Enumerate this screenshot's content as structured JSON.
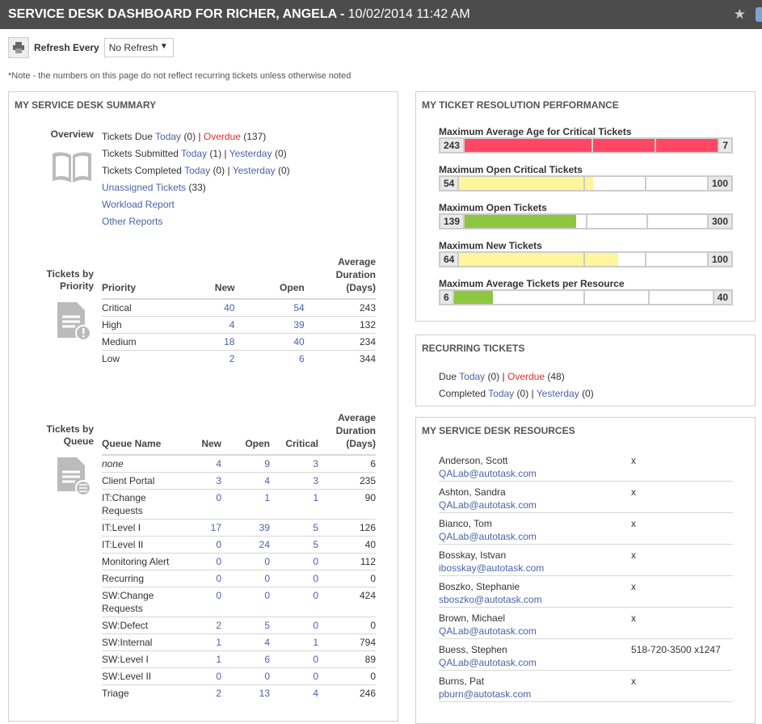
{
  "header": {
    "title": "SERVICE DESK DASHBOARD FOR RICHER, ANGELA",
    "separator": " - ",
    "datetime": "10/02/2014 11:42 AM"
  },
  "toolbar": {
    "refresh_label": "Refresh Every",
    "refresh_value": "No Refresh"
  },
  "note": "*Note - the numbers on this page do not reflect recurring tickets unless otherwise noted",
  "summary": {
    "title": "MY SERVICE DESK SUMMARY",
    "overview_label": "Overview",
    "due": {
      "label": "Tickets Due",
      "today": "Today",
      "today_count": "(0)",
      "sep": " | ",
      "overdue": "Overdue",
      "overdue_count": "(137)"
    },
    "submitted": {
      "label": "Tickets Submitted",
      "today": "Today",
      "today_count": "(1)",
      "sep": " | ",
      "yesterday": "Yesterday",
      "yesterday_count": "(0)"
    },
    "completed": {
      "label": "Tickets Completed",
      "today": "Today",
      "today_count": "(0)",
      "sep": " | ",
      "yesterday": "Yesterday",
      "yesterday_count": "(0)"
    },
    "unassigned": "Unassigned Tickets",
    "unassigned_count": "(33)",
    "workload": "Workload Report",
    "other": "Other Reports",
    "priority_label": "Tickets by Priority",
    "priority_headers": [
      "Priority",
      "New",
      "Open",
      "Average Duration (Days)"
    ],
    "priority_rows": [
      [
        "Critical",
        "40",
        "54",
        "243"
      ],
      [
        "High",
        "4",
        "39",
        "132"
      ],
      [
        "Medium",
        "18",
        "40",
        "234"
      ],
      [
        "Low",
        "2",
        "6",
        "344"
      ]
    ],
    "queue_label": "Tickets by Queue",
    "queue_headers": [
      "Queue Name",
      "New",
      "Open",
      "Critical",
      "Average Duration (Days)"
    ],
    "queue_rows": [
      [
        "none",
        "4",
        "9",
        "3",
        "6"
      ],
      [
        "Client Portal",
        "3",
        "4",
        "3",
        "235"
      ],
      [
        "IT:Change Requests",
        "0",
        "1",
        "1",
        "90"
      ],
      [
        "IT:Level I",
        "17",
        "39",
        "5",
        "126"
      ],
      [
        "IT:Level II",
        "0",
        "24",
        "5",
        "40"
      ],
      [
        "Monitoring Alert",
        "0",
        "0",
        "0",
        "112"
      ],
      [
        "Recurring",
        "0",
        "0",
        "0",
        "0"
      ],
      [
        "SW:Change Requests",
        "0",
        "0",
        "0",
        "424"
      ],
      [
        "SW:Defect",
        "2",
        "5",
        "0",
        "0"
      ],
      [
        "SW:Internal",
        "1",
        "4",
        "1",
        "794"
      ],
      [
        "SW:Level I",
        "1",
        "6",
        "0",
        "89"
      ],
      [
        "SW:Level II",
        "0",
        "0",
        "0",
        "0"
      ],
      [
        "Triage",
        "2",
        "13",
        "4",
        "246"
      ]
    ]
  },
  "performance": {
    "title": "MY TICKET RESOLUTION PERFORMANCE",
    "bars": [
      {
        "title": "Maximum Average Age for Critical Tickets",
        "value": "243",
        "max": "7",
        "percent": 100,
        "color": "#ff4763"
      },
      {
        "title": "Maximum Open Critical Tickets",
        "value": "54",
        "max": "100",
        "percent": 54,
        "color": "#fff59d"
      },
      {
        "title": "Maximum Open Tickets",
        "value": "139",
        "max": "300",
        "percent": 46,
        "color": "#8dc63f"
      },
      {
        "title": "Maximum New Tickets",
        "value": "64",
        "max": "100",
        "percent": 64,
        "color": "#fff59d"
      },
      {
        "title": "Maximum Average Tickets per Resource",
        "value": "6",
        "max": "40",
        "percent": 15,
        "color": "#8dc63f"
      }
    ]
  },
  "recurring": {
    "title": "RECURRING TICKETS",
    "due": "Due",
    "today": "Today",
    "due_today_count": "(0)",
    "sep": " | ",
    "overdue": "Overdue",
    "overdue_count": "(48)",
    "completed": "Completed",
    "completed_today_count": "(0)",
    "yesterday": "Yesterday",
    "yesterday_count": "(0)"
  },
  "resources": {
    "title": "MY SERVICE DESK RESOURCES",
    "items": [
      {
        "name": "Anderson, Scott",
        "email": "QALab@autotask.com",
        "phone": "x"
      },
      {
        "name": "Ashton, Sandra",
        "email": "QALab@autotask.com",
        "phone": "x"
      },
      {
        "name": "Bianco, Tom",
        "email": "QALab@autotask.com",
        "phone": "x"
      },
      {
        "name": "Bosskay, Istvan",
        "email": "ibosskay@autotask.com",
        "phone": "x"
      },
      {
        "name": "Boszko, Stephanie",
        "email": "sboszko@autotask.com",
        "phone": "x"
      },
      {
        "name": "Brown, Michael",
        "email": "QALab@autotask.com",
        "phone": "x"
      },
      {
        "name": "Buess, Stephen",
        "email": "QALab@autotask.com",
        "phone": "518-720-3500 x1247"
      },
      {
        "name": "Burns, Pat",
        "email": "pburn@autotask.com",
        "phone": "x"
      }
    ]
  }
}
